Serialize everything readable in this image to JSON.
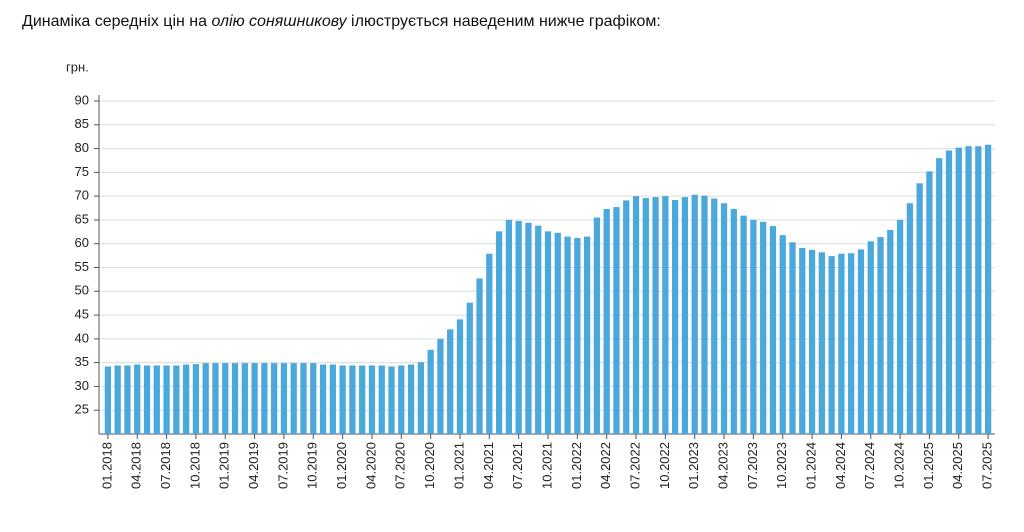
{
  "intro": {
    "before": "Динаміка середніх цін на ",
    "emphasis": "олію соняшникову",
    "after": " ілюструється наведеним нижче графіком:"
  },
  "chart_data": {
    "type": "bar",
    "y_label": "грн.",
    "color": "#4aa8dc",
    "grid": true,
    "ylim": [
      20,
      90
    ],
    "yticks": [
      25,
      30,
      35,
      40,
      45,
      50,
      55,
      60,
      65,
      70,
      75,
      80,
      85,
      90
    ],
    "categories": [
      "01.2018",
      null,
      null,
      "04.2018",
      null,
      null,
      "07.2018",
      null,
      null,
      "10.2018",
      null,
      null,
      "01.2019",
      null,
      null,
      "04.2019",
      null,
      null,
      "07.2019",
      null,
      null,
      "10.2019",
      null,
      null,
      "01.2020",
      null,
      null,
      "04.2020",
      null,
      null,
      "07.2020",
      null,
      null,
      "10.2020",
      null,
      null,
      "01.2021",
      null,
      null,
      "04.2021",
      null,
      null,
      "07.2021",
      null,
      null,
      "10.2021",
      null,
      null,
      "01.2022",
      null,
      null,
      "04.2022",
      null,
      null,
      "07.2022",
      null,
      null,
      "10.2022",
      null,
      null,
      "01.2023",
      null,
      null,
      "04.2023",
      null,
      null,
      "07.2023",
      null,
      null,
      "10.2023",
      null,
      null,
      "01.2024",
      null,
      null,
      "04.2024",
      null,
      null,
      "07.2024",
      null,
      null,
      "10.2024",
      null,
      null,
      "01.2025",
      null,
      null,
      "04.2025",
      null,
      null,
      "07.2025"
    ],
    "values": [
      34.2,
      34.4,
      34.4,
      34.6,
      34.4,
      34.4,
      34.4,
      34.4,
      34.6,
      34.7,
      34.9,
      34.9,
      34.9,
      34.9,
      34.9,
      34.9,
      34.9,
      34.9,
      34.9,
      34.9,
      34.9,
      34.9,
      34.6,
      34.6,
      34.4,
      34.4,
      34.4,
      34.4,
      34.4,
      34.2,
      34.4,
      34.6,
      35.1,
      37.7,
      40.0,
      42.0,
      44.1,
      47.6,
      52.7,
      57.9,
      62.6,
      65.0,
      64.8,
      64.4,
      63.8,
      62.6,
      62.3,
      61.5,
      61.2,
      61.5,
      65.5,
      67.3,
      67.7,
      69.1,
      70.0,
      69.6,
      69.8,
      70.0,
      69.2,
      69.8,
      70.3,
      70.1,
      69.5,
      68.5,
      67.3,
      65.9,
      65.0,
      64.6,
      63.7,
      61.8,
      60.3,
      59.1,
      58.7,
      58.2,
      57.4,
      57.9,
      58.0,
      58.8,
      60.5,
      61.4,
      62.9,
      65.0,
      68.5,
      72.7,
      75.2,
      78.0,
      79.6,
      80.2,
      80.5,
      80.5,
      80.8
    ]
  }
}
